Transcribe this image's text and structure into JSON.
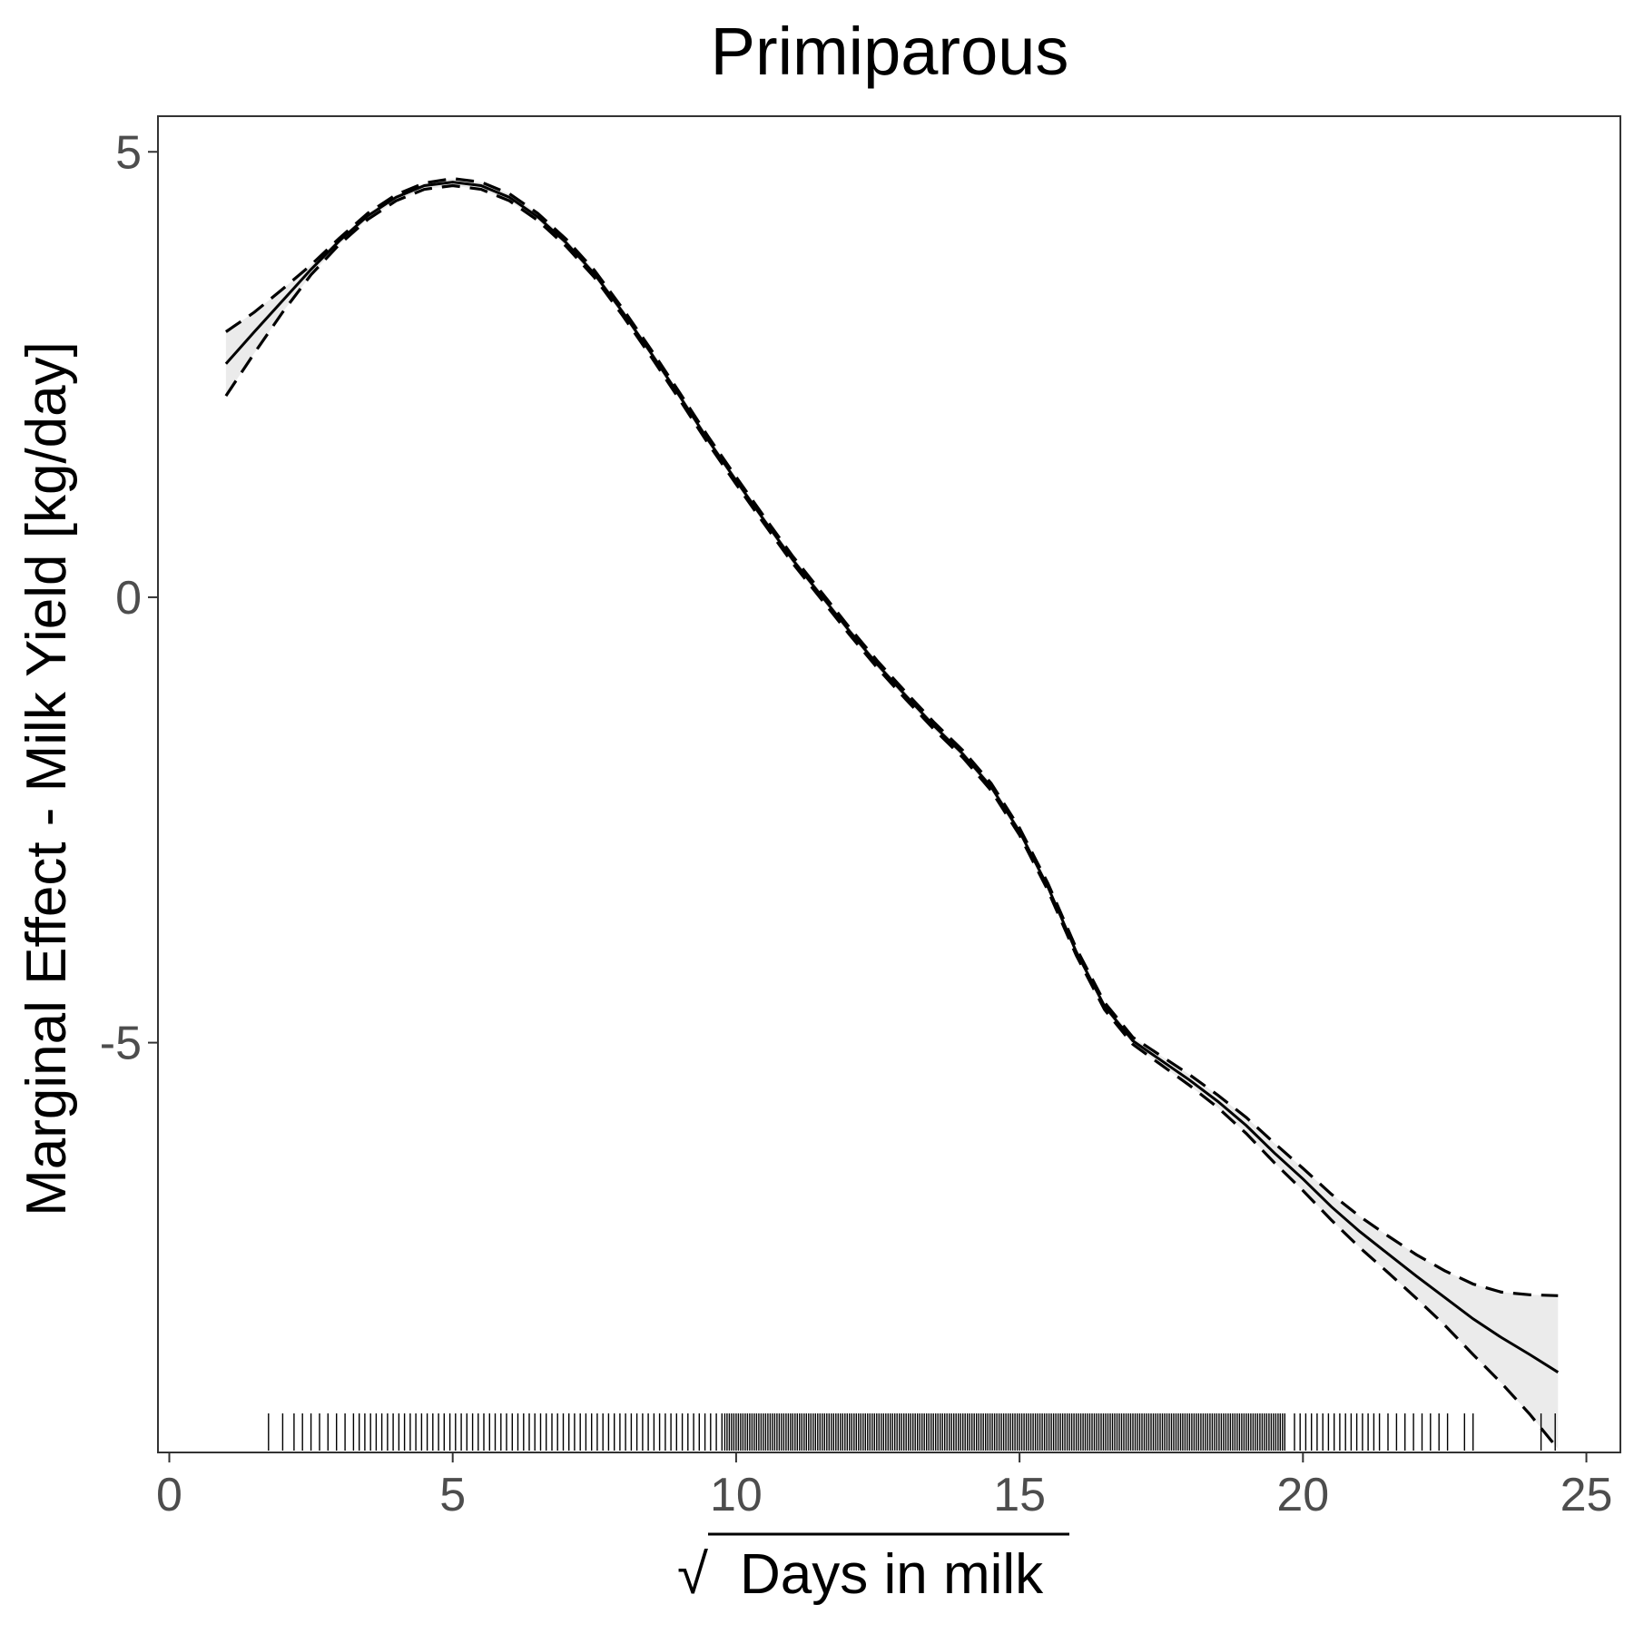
{
  "chart_data": {
    "type": "line",
    "title": "Primiparous",
    "xlabel": "Days in milk",
    "xlabel_radical": "√",
    "ylabel": "Marginal Effect - Milk Yield [kg/day]",
    "xlim": [
      -0.2,
      25.6
    ],
    "ylim": [
      -9.6,
      5.4
    ],
    "xticks": [
      0,
      5,
      10,
      15,
      20,
      25
    ],
    "xtick_labels": [
      "0",
      "5",
      "10",
      "15",
      "20",
      "25"
    ],
    "yticks": [
      5,
      0,
      -5
    ],
    "ytick_labels": [
      "5",
      "0",
      "-5"
    ],
    "grid": false,
    "legend": "none",
    "colors": {
      "line": "#000000",
      "band": "#ebebeb",
      "frame": "#333333"
    },
    "series": [
      {
        "role": "estimate",
        "x": [
          1.0,
          1.5,
          2.0,
          2.5,
          3.0,
          3.5,
          4.0,
          4.5,
          5.0,
          5.5,
          6.0,
          6.5,
          7.0,
          7.5,
          8.0,
          8.5,
          9.0,
          9.5,
          10.0,
          10.5,
          11.0,
          11.5,
          12.0,
          12.5,
          13.0,
          13.5,
          14.0,
          14.5,
          15.0,
          15.5,
          16.0,
          16.5,
          17.0,
          17.5,
          18.0,
          18.5,
          19.0,
          19.5,
          20.0,
          20.5,
          21.0,
          21.5,
          22.0,
          22.5,
          23.0,
          23.5,
          24.0,
          24.5
        ],
        "y": [
          2.62,
          2.98,
          3.33,
          3.68,
          4.0,
          4.28,
          4.49,
          4.62,
          4.66,
          4.62,
          4.49,
          4.27,
          3.98,
          3.63,
          3.2,
          2.74,
          2.26,
          1.77,
          1.31,
          0.86,
          0.42,
          0.02,
          -0.38,
          -0.76,
          -1.11,
          -1.45,
          -1.76,
          -2.13,
          -2.63,
          -3.25,
          -3.98,
          -4.59,
          -4.98,
          -5.2,
          -5.42,
          -5.66,
          -5.93,
          -6.24,
          -6.53,
          -6.84,
          -7.12,
          -7.37,
          -7.62,
          -7.86,
          -8.1,
          -8.31,
          -8.5,
          -8.7
        ]
      },
      {
        "role": "upper",
        "x": [
          1.0,
          1.5,
          2.0,
          2.5,
          3.0,
          3.5,
          4.0,
          4.5,
          5.0,
          5.5,
          6.0,
          6.5,
          7.0,
          7.5,
          8.0,
          8.5,
          9.0,
          9.5,
          10.0,
          10.5,
          11.0,
          11.5,
          12.0,
          12.5,
          13.0,
          13.5,
          14.0,
          14.5,
          15.0,
          15.5,
          16.0,
          16.5,
          17.0,
          17.5,
          18.0,
          18.5,
          19.0,
          19.5,
          20.0,
          20.5,
          21.0,
          21.5,
          22.0,
          22.5,
          23.0,
          23.5,
          24.0,
          24.5
        ],
        "y": [
          2.98,
          3.2,
          3.46,
          3.73,
          4.03,
          4.31,
          4.52,
          4.65,
          4.7,
          4.66,
          4.53,
          4.31,
          4.02,
          3.67,
          3.24,
          2.78,
          2.3,
          1.81,
          1.35,
          0.9,
          0.46,
          0.06,
          -0.34,
          -0.72,
          -1.07,
          -1.41,
          -1.72,
          -2.09,
          -2.59,
          -3.21,
          -3.94,
          -4.55,
          -4.94,
          -5.15,
          -5.36,
          -5.59,
          -5.84,
          -6.13,
          -6.41,
          -6.7,
          -6.95,
          -7.17,
          -7.38,
          -7.56,
          -7.71,
          -7.8,
          -7.83,
          -7.84
        ]
      },
      {
        "role": "lower",
        "x": [
          1.0,
          1.5,
          2.0,
          2.5,
          3.0,
          3.5,
          4.0,
          4.5,
          5.0,
          5.5,
          6.0,
          6.5,
          7.0,
          7.5,
          8.0,
          8.5,
          9.0,
          9.5,
          10.0,
          10.5,
          11.0,
          11.5,
          12.0,
          12.5,
          13.0,
          13.5,
          14.0,
          14.5,
          15.0,
          15.5,
          16.0,
          16.5,
          17.0,
          17.5,
          18.0,
          18.5,
          19.0,
          19.5,
          20.0,
          20.5,
          21.0,
          21.5,
          22.0,
          22.5,
          23.0,
          23.5,
          24.0,
          24.5
        ],
        "y": [
          2.26,
          2.74,
          3.2,
          3.62,
          3.96,
          4.24,
          4.45,
          4.58,
          4.62,
          4.58,
          4.45,
          4.23,
          3.94,
          3.59,
          3.16,
          2.7,
          2.22,
          1.73,
          1.27,
          0.82,
          0.38,
          -0.02,
          -0.42,
          -0.8,
          -1.15,
          -1.49,
          -1.8,
          -2.17,
          -2.67,
          -3.29,
          -4.02,
          -4.63,
          -5.02,
          -5.25,
          -5.48,
          -5.73,
          -6.02,
          -6.35,
          -6.66,
          -6.99,
          -7.3,
          -7.58,
          -7.87,
          -8.17,
          -8.5,
          -8.82,
          -9.17,
          -9.56
        ]
      }
    ],
    "rug": {
      "sparse_x": [
        1.75,
        2.0,
        2.2,
        2.35,
        2.5,
        2.65,
        2.8,
        2.95,
        3.1,
        3.25,
        3.35,
        3.45,
        3.55,
        3.65,
        3.75,
        3.85,
        3.95,
        4.05,
        4.15,
        4.25,
        4.35,
        4.45,
        4.55,
        4.65,
        4.75,
        4.85,
        4.95,
        5.05,
        5.15,
        5.25,
        5.35,
        5.45,
        5.55,
        5.65,
        5.75,
        5.85,
        5.95,
        6.05,
        6.15,
        6.25,
        6.35,
        6.45,
        6.55,
        6.65,
        6.75,
        6.85,
        6.95,
        7.05,
        7.15,
        7.25,
        7.35,
        7.45,
        7.55,
        7.65,
        7.75,
        7.85,
        7.95,
        8.05,
        8.15,
        8.25,
        8.35,
        8.45,
        8.55,
        8.65,
        8.75,
        8.85,
        8.95,
        9.05,
        9.15,
        9.25,
        9.35,
        9.45,
        9.55,
        9.65,
        9.75,
        19.85,
        19.95,
        20.05,
        20.15,
        20.25,
        20.35,
        20.45,
        20.55,
        20.65,
        20.75,
        20.85,
        20.95,
        21.05,
        21.15,
        21.25,
        21.35,
        21.5,
        21.65,
        21.8,
        21.95,
        22.1,
        22.25,
        22.4,
        22.55,
        22.85,
        23.0,
        24.2,
        24.45
      ],
      "dense_range": [
        9.8,
        19.7
      ]
    }
  }
}
